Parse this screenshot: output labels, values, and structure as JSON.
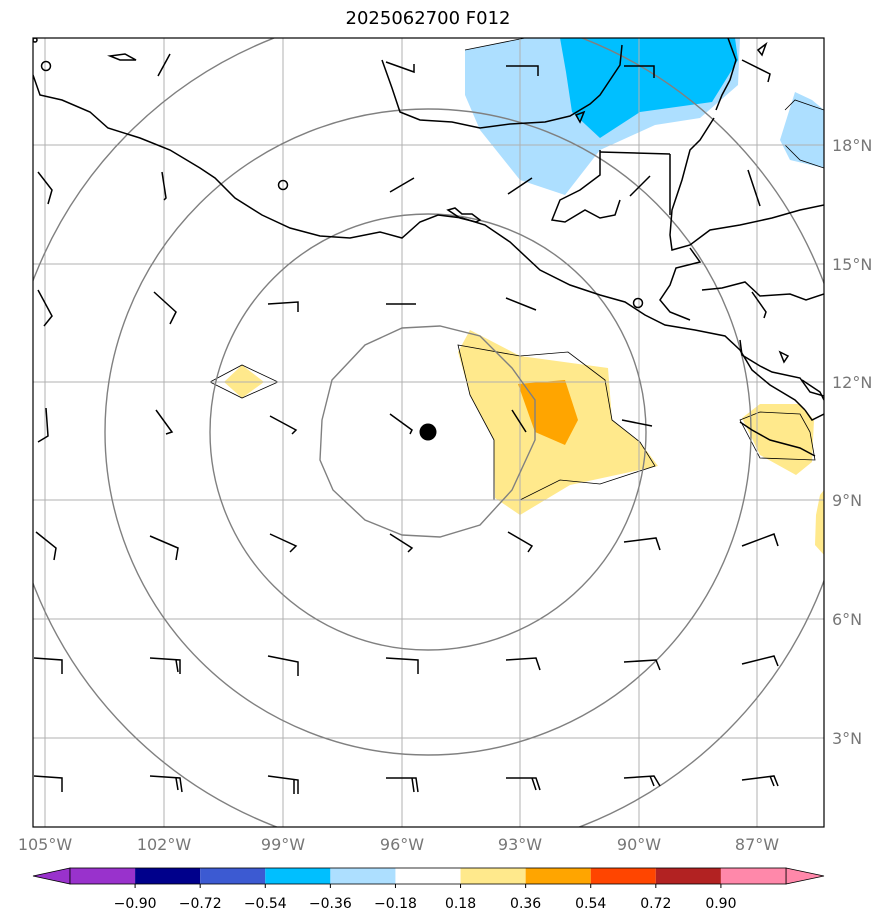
{
  "title": "2025062700 F012",
  "map": {
    "lon_labels": [
      "105°W",
      "102°W",
      "99°W",
      "96°W",
      "93°W",
      "90°W",
      "87°W"
    ],
    "lat_labels": [
      "18°N",
      "15°N",
      "12°N",
      "9°N",
      "6°N",
      "3°N"
    ],
    "storm_center": {
      "lon": -95.4,
      "lat": 10.8
    },
    "range_ring_color": "#808080",
    "gridline_color": "#b0b0b0"
  },
  "colorbar": {
    "labels": [
      "−0.90",
      "−0.72",
      "−0.54",
      "−0.36",
      "−0.18",
      "0.18",
      "0.36",
      "0.54",
      "0.72",
      "0.90"
    ],
    "colors": [
      "#9932CC",
      "#00008B",
      "#3C5AD2",
      "#00BFFF",
      "#ADDFFF",
      "#FFFFFF",
      "#FFE98C",
      "#FFA500",
      "#FF4500",
      "#B22222",
      "#FF88AA"
    ]
  }
}
